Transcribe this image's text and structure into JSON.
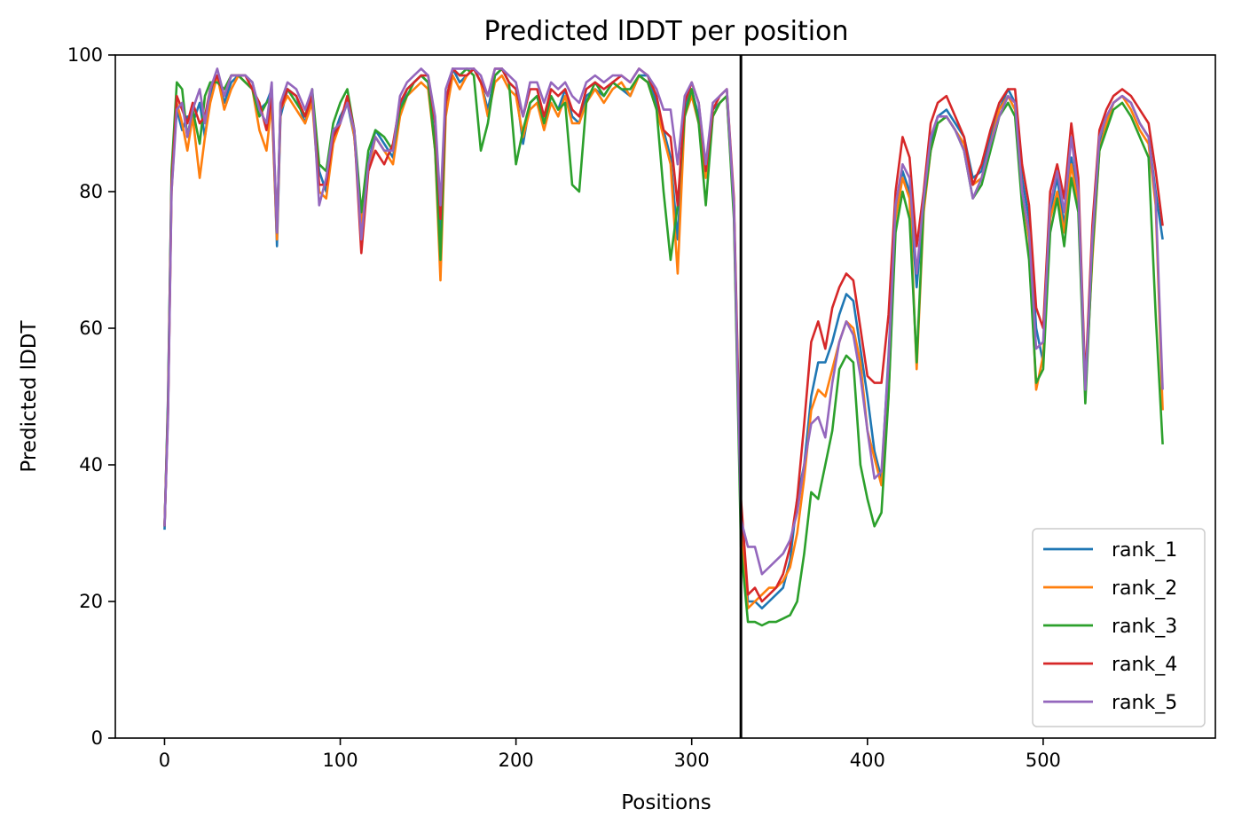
{
  "chart_data": {
    "type": "line",
    "title": "Predicted lDDT per position",
    "xlabel": "Positions",
    "ylabel": "Predicted lDDT",
    "xlim": [
      -28,
      598
    ],
    "ylim": [
      0,
      100
    ],
    "x_ticks": [
      0,
      100,
      200,
      300,
      400,
      500
    ],
    "y_ticks": [
      0,
      20,
      40,
      60,
      80,
      100
    ],
    "grid": false,
    "legend_position": "lower right",
    "vline_x": 328,
    "x": [
      0,
      2,
      4,
      7,
      10,
      13,
      16,
      20,
      23,
      26,
      30,
      34,
      38,
      42,
      46,
      50,
      54,
      58,
      61,
      64,
      66,
      70,
      75,
      80,
      84,
      88,
      92,
      96,
      100,
      104,
      108,
      112,
      116,
      120,
      125,
      130,
      134,
      138,
      142,
      146,
      150,
      154,
      157,
      160,
      164,
      168,
      172,
      176,
      180,
      184,
      188,
      192,
      196,
      200,
      204,
      208,
      212,
      216,
      220,
      224,
      228,
      232,
      236,
      240,
      245,
      250,
      255,
      260,
      265,
      270,
      275,
      280,
      284,
      288,
      292,
      296,
      300,
      304,
      308,
      312,
      316,
      320,
      324,
      328,
      332,
      336,
      340,
      344,
      348,
      352,
      356,
      360,
      364,
      368,
      372,
      376,
      380,
      384,
      388,
      392,
      396,
      400,
      404,
      408,
      412,
      416,
      420,
      424,
      428,
      432,
      436,
      440,
      445,
      450,
      455,
      460,
      465,
      470,
      475,
      480,
      484,
      488,
      492,
      496,
      500,
      504,
      508,
      512,
      516,
      520,
      524,
      528,
      532,
      536,
      540,
      545,
      550,
      555,
      560,
      564,
      568
    ],
    "series": [
      {
        "name": "rank_1",
        "color": "#1f77b4",
        "values": [
          30.5,
          50,
          82,
          92,
          89,
          91,
          90,
          93,
          88,
          94,
          97,
          93,
          96,
          97,
          97,
          96,
          92,
          93,
          95,
          72,
          91,
          95,
          94,
          90,
          94,
          83,
          80,
          88,
          91,
          93,
          88,
          76,
          84,
          89,
          87,
          85,
          92,
          95,
          96,
          97,
          96,
          87,
          72,
          92,
          98,
          96,
          97,
          98,
          96,
          92,
          97,
          98,
          96,
          95,
          87,
          93,
          94,
          90,
          94,
          92,
          95,
          91,
          90,
          94,
          95,
          94,
          96,
          95,
          94,
          97,
          97,
          93,
          89,
          85,
          73,
          92,
          95,
          91,
          83,
          92,
          93,
          94,
          78,
          33,
          20,
          20,
          19,
          20,
          21,
          22,
          26,
          35,
          40,
          50,
          55,
          55,
          58,
          62,
          65,
          64,
          57,
          50,
          42,
          38,
          56,
          77,
          83,
          80,
          66,
          78,
          87,
          91,
          92,
          90,
          88,
          82,
          83,
          88,
          92,
          95,
          93,
          82,
          76,
          60,
          55,
          77,
          82,
          75,
          85,
          79,
          50,
          72,
          87,
          90,
          93,
          94,
          93,
          90,
          88,
          80,
          73
        ]
      },
      {
        "name": "rank_2",
        "color": "#ff7f0e",
        "values": [
          31,
          48,
          80,
          93,
          90,
          86,
          91,
          82,
          88,
          93,
          97,
          92,
          95,
          97,
          96,
          95,
          89,
          86,
          93,
          73,
          92,
          94,
          92,
          90,
          93,
          80,
          79,
          87,
          90,
          94,
          88,
          75,
          83,
          88,
          86,
          84,
          91,
          94,
          95,
          96,
          95,
          86,
          67,
          91,
          97,
          95,
          97,
          98,
          96,
          91,
          96,
          97,
          95,
          94,
          88,
          92,
          93,
          89,
          93,
          91,
          94,
          90,
          90,
          93,
          95,
          93,
          95,
          96,
          94,
          97,
          96,
          92,
          88,
          84,
          68,
          91,
          94,
          90,
          82,
          91,
          93,
          94,
          77,
          30,
          19,
          20,
          21,
          22,
          22,
          23,
          25,
          30,
          38,
          48,
          51,
          50,
          54,
          58,
          61,
          60,
          55,
          45,
          41,
          37,
          50,
          76,
          82,
          79,
          54,
          77,
          86,
          90,
          91,
          89,
          87,
          81,
          82,
          87,
          92,
          94,
          92,
          80,
          73,
          51,
          56,
          76,
          80,
          74,
          84,
          78,
          51,
          70,
          86,
          90,
          93,
          94,
          92,
          89,
          87,
          78,
          48
        ]
      },
      {
        "name": "rank_3",
        "color": "#2ca02c",
        "values": [
          31,
          49,
          83,
          96,
          95,
          88,
          92,
          87,
          94,
          96,
          96,
          95,
          97,
          97,
          96,
          95,
          91,
          93,
          94,
          74,
          93,
          95,
          93,
          91,
          95,
          84,
          83,
          90,
          93,
          95,
          89,
          77,
          86,
          89,
          88,
          86,
          92,
          94,
          96,
          97,
          96,
          86,
          70,
          93,
          98,
          97,
          98,
          97,
          86,
          90,
          97,
          98,
          96,
          84,
          89,
          93,
          94,
          90,
          94,
          92,
          93,
          81,
          80,
          93,
          96,
          94,
          96,
          95,
          95,
          97,
          96,
          92,
          80,
          70,
          78,
          91,
          95,
          90,
          78,
          91,
          93,
          94,
          76,
          28,
          17,
          17,
          16.5,
          17,
          17,
          17.5,
          18,
          20,
          27,
          36,
          35,
          40,
          45,
          54,
          56,
          55,
          40,
          35,
          31,
          33,
          50,
          74,
          80,
          76,
          55,
          78,
          86,
          90,
          91,
          89,
          86,
          79,
          81,
          86,
          91,
          93,
          91,
          78,
          70,
          52,
          54,
          74,
          79,
          72,
          82,
          77,
          49,
          71,
          86,
          89,
          92,
          93,
          91,
          88,
          85,
          62,
          43
        ]
      },
      {
        "name": "rank_4",
        "color": "#d62728",
        "values": [
          31,
          48,
          81,
          94,
          92,
          90,
          93,
          90,
          91,
          95,
          97,
          94,
          97,
          97,
          97,
          95,
          93,
          89,
          94,
          74,
          92,
          95,
          94,
          91,
          94,
          81,
          81,
          88,
          90,
          94,
          89,
          71,
          83,
          86,
          84,
          87,
          93,
          95,
          96,
          97,
          97,
          90,
          76,
          93,
          98,
          97,
          97,
          98,
          96,
          94,
          98,
          98,
          96,
          95,
          91,
          95,
          95,
          91,
          95,
          94,
          95,
          92,
          91,
          95,
          96,
          95,
          96,
          97,
          96,
          98,
          97,
          94,
          89,
          88,
          78,
          93,
          96,
          93,
          83,
          92,
          94,
          95,
          79,
          35,
          21,
          22,
          20,
          21,
          22,
          24,
          28,
          35,
          46,
          58,
          61,
          57,
          63,
          66,
          68,
          67,
          60,
          53,
          52,
          52,
          62,
          80,
          88,
          85,
          72,
          80,
          90,
          93,
          94,
          91,
          88,
          81,
          84,
          89,
          93,
          95,
          95,
          84,
          78,
          63,
          60,
          80,
          84,
          79,
          90,
          82,
          52,
          75,
          89,
          92,
          94,
          95,
          94,
          92,
          90,
          83,
          75
        ]
      },
      {
        "name": "rank_5",
        "color": "#9467bd",
        "values": [
          31,
          47,
          80,
          92,
          93,
          88,
          92,
          95,
          90,
          95,
          98,
          94,
          97,
          97,
          97,
          96,
          92,
          90,
          96,
          74,
          93,
          96,
          95,
          92,
          95,
          78,
          82,
          89,
          90,
          93,
          89,
          73,
          84,
          88,
          86,
          86,
          94,
          96,
          97,
          98,
          97,
          91,
          78,
          95,
          98,
          98,
          98,
          98,
          97,
          94,
          98,
          98,
          97,
          96,
          91,
          96,
          96,
          93,
          96,
          95,
          96,
          94,
          93,
          96,
          97,
          96,
          97,
          97,
          96,
          98,
          97,
          95,
          92,
          92,
          84,
          94,
          96,
          93,
          84,
          93,
          94,
          95,
          78,
          32,
          28,
          28,
          24,
          25,
          26,
          27,
          29,
          33,
          40,
          46,
          47,
          44,
          52,
          58,
          61,
          59,
          53,
          45,
          38,
          39,
          55,
          78,
          84,
          82,
          68,
          79,
          88,
          91,
          91,
          89,
          86,
          79,
          82,
          87,
          91,
          94,
          93,
          80,
          74,
          57,
          58,
          78,
          83,
          77,
          88,
          80,
          51,
          73,
          88,
          91,
          93,
          94,
          93,
          90,
          88,
          79,
          51
        ]
      }
    ]
  }
}
